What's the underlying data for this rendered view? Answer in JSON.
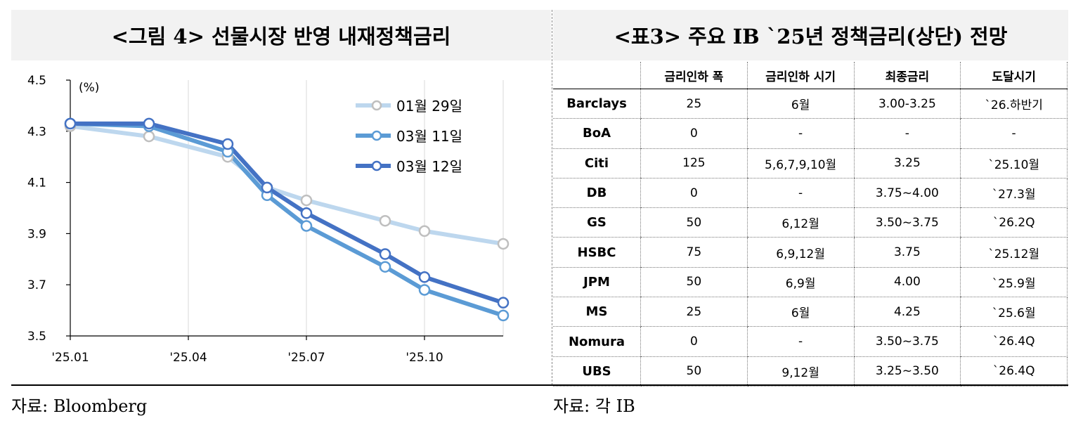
{
  "left_panel": {
    "title": "<그림 4> 선물시장 반영 내재정책금리",
    "source": "자료: Bloomberg"
  },
  "right_panel": {
    "title": "<표3> 주요 IB `25년 정책금리(상단) 전망",
    "source": "자료: 각 IB"
  },
  "chart_data": {
    "type": "line",
    "unit_label": "(%)",
    "x_ticks": [
      "'25.01",
      "'25.04",
      "'25.07",
      "'25.10"
    ],
    "y_ticks": [
      "4.5",
      "4.3",
      "4.1",
      "3.9",
      "3.7",
      "3.5"
    ],
    "ylim": [
      3.5,
      4.5
    ],
    "x_months": [
      "25.01",
      "25.03",
      "25.05",
      "25.06",
      "25.07",
      "25.09",
      "25.10",
      "25.12"
    ],
    "grid": "vertical",
    "legend_position": "top-right",
    "series": [
      {
        "name": "01월 29일",
        "color": "#bdd7ee",
        "values": [
          4.32,
          4.28,
          4.2,
          4.08,
          4.03,
          3.95,
          3.91,
          3.86
        ]
      },
      {
        "name": "03월 11일",
        "color": "#5b9bd5",
        "values": [
          4.33,
          4.32,
          4.22,
          4.05,
          3.93,
          3.77,
          3.68,
          3.58
        ]
      },
      {
        "name": "03월 12일",
        "color": "#4472c4",
        "values": [
          4.33,
          4.33,
          4.25,
          4.08,
          3.98,
          3.82,
          3.73,
          3.63
        ]
      }
    ]
  },
  "table": {
    "headers": [
      "",
      "금리인하 폭",
      "금리인하 시기",
      "최종금리",
      "도달시기"
    ],
    "rows": [
      [
        "Barclays",
        "25",
        "6월",
        "3.00-3.25",
        "`26.하반기"
      ],
      [
        "BoA",
        "0",
        "-",
        "-",
        "-"
      ],
      [
        "Citi",
        "125",
        "5,6,7,9,10월",
        "3.25",
        "`25.10월"
      ],
      [
        "DB",
        "0",
        "-",
        "3.75~4.00",
        "`27.3월"
      ],
      [
        "GS",
        "50",
        "6,12월",
        "3.50~3.75",
        "`26.2Q"
      ],
      [
        "HSBC",
        "75",
        "6,9,12월",
        "3.75",
        "`25.12월"
      ],
      [
        "JPM",
        "50",
        "6,9월",
        "4.00",
        "`25.9월"
      ],
      [
        "MS",
        "25",
        "6월",
        "4.25",
        "`25.6월"
      ],
      [
        "Nomura",
        "0",
        "-",
        "3.50~3.75",
        "`26.4Q"
      ],
      [
        "UBS",
        "50",
        "9,12월",
        "3.25~3.50",
        "`26.4Q"
      ]
    ]
  }
}
